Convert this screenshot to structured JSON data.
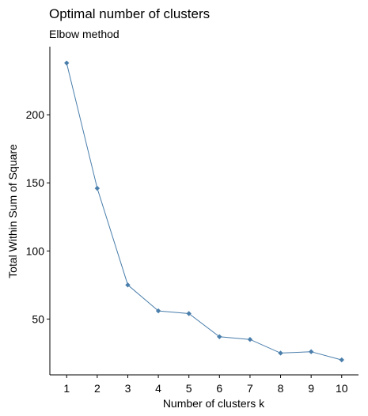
{
  "chart_data": {
    "type": "line",
    "title": "Optimal number of clusters",
    "subtitle": "Elbow method",
    "xlabel": "Number of clusters k",
    "ylabel": "Total Within Sum of Square",
    "x": [
      1,
      2,
      3,
      4,
      5,
      6,
      7,
      8,
      9,
      10
    ],
    "x_tick_labels": [
      "1",
      "2",
      "3",
      "4",
      "5",
      "6",
      "7",
      "8",
      "9",
      "10"
    ],
    "y_ticks": [
      50,
      100,
      150,
      200
    ],
    "y_tick_labels": [
      "50",
      "100",
      "150",
      "200"
    ],
    "xlim": [
      0.45,
      10.55
    ],
    "ylim": [
      9,
      250
    ],
    "grid": false,
    "legend": "none",
    "series": [
      {
        "values": [
          238,
          146,
          75,
          56,
          54,
          37,
          35,
          25,
          26,
          20
        ],
        "color": "#4a7eab",
        "marker": "diamond"
      }
    ]
  }
}
